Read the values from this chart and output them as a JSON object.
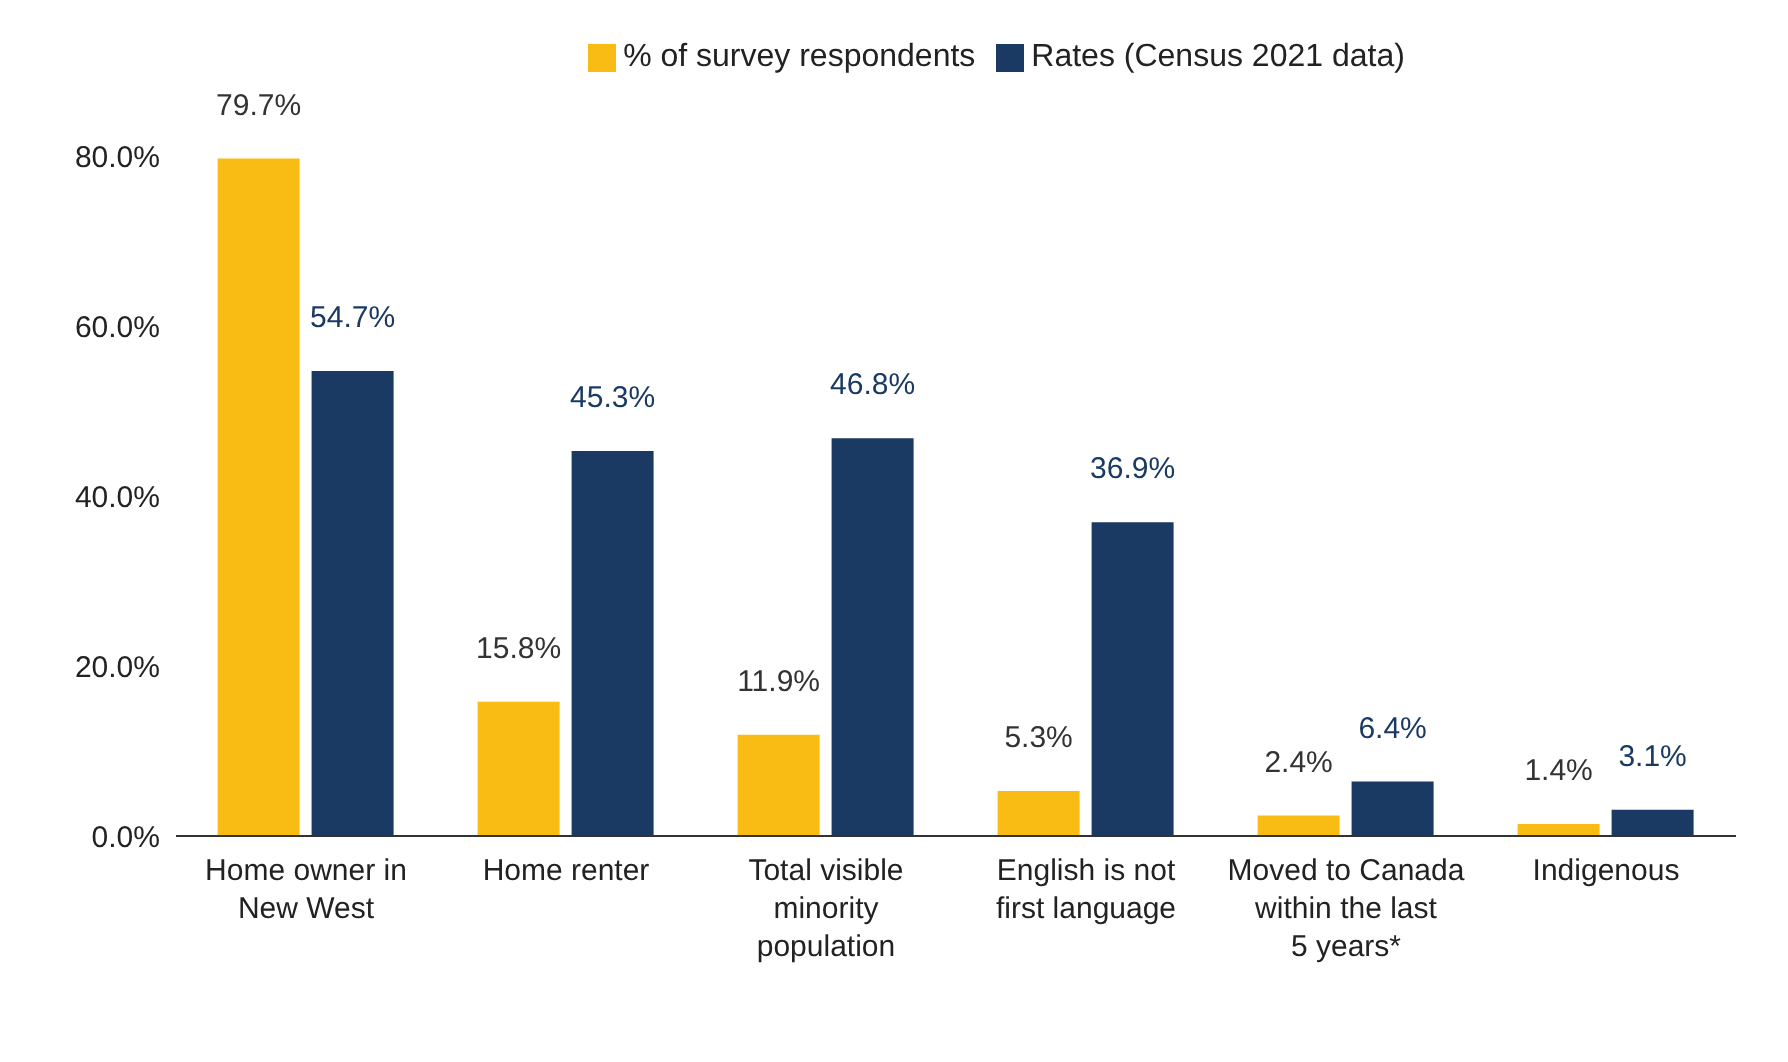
{
  "chart_data": {
    "type": "bar",
    "categories": [
      "Home owner in New West",
      "Home renter",
      "Total visible minority population",
      "English is not first language",
      "Moved to Canada within the last 5 years*",
      "Indigenous"
    ],
    "series": [
      {
        "name": "% of survey respondents",
        "color": "#f9bc15",
        "values": [
          79.7,
          15.8,
          11.9,
          5.3,
          2.4,
          1.4
        ],
        "value_labels": [
          "79.7%",
          "15.8%",
          "11.9%",
          "5.3%",
          "2.4%",
          "1.4%"
        ]
      },
      {
        "name": "Rates (Census 2021 data)",
        "color": "#1b3a63",
        "values": [
          54.7,
          45.3,
          46.8,
          36.9,
          6.4,
          3.1
        ],
        "value_labels": [
          "54.7%",
          "45.3%",
          "46.8%",
          "36.9%",
          "6.4%",
          "3.1%"
        ]
      }
    ],
    "ylim": [
      0,
      80
    ],
    "yticks": [
      {
        "value": 0,
        "label": "0.0%"
      },
      {
        "value": 20,
        "label": "20.0%"
      },
      {
        "value": 40,
        "label": "40.0%"
      },
      {
        "value": 60,
        "label": "60.0%"
      },
      {
        "value": 80,
        "label": "80.0%"
      }
    ],
    "legend": "top"
  }
}
